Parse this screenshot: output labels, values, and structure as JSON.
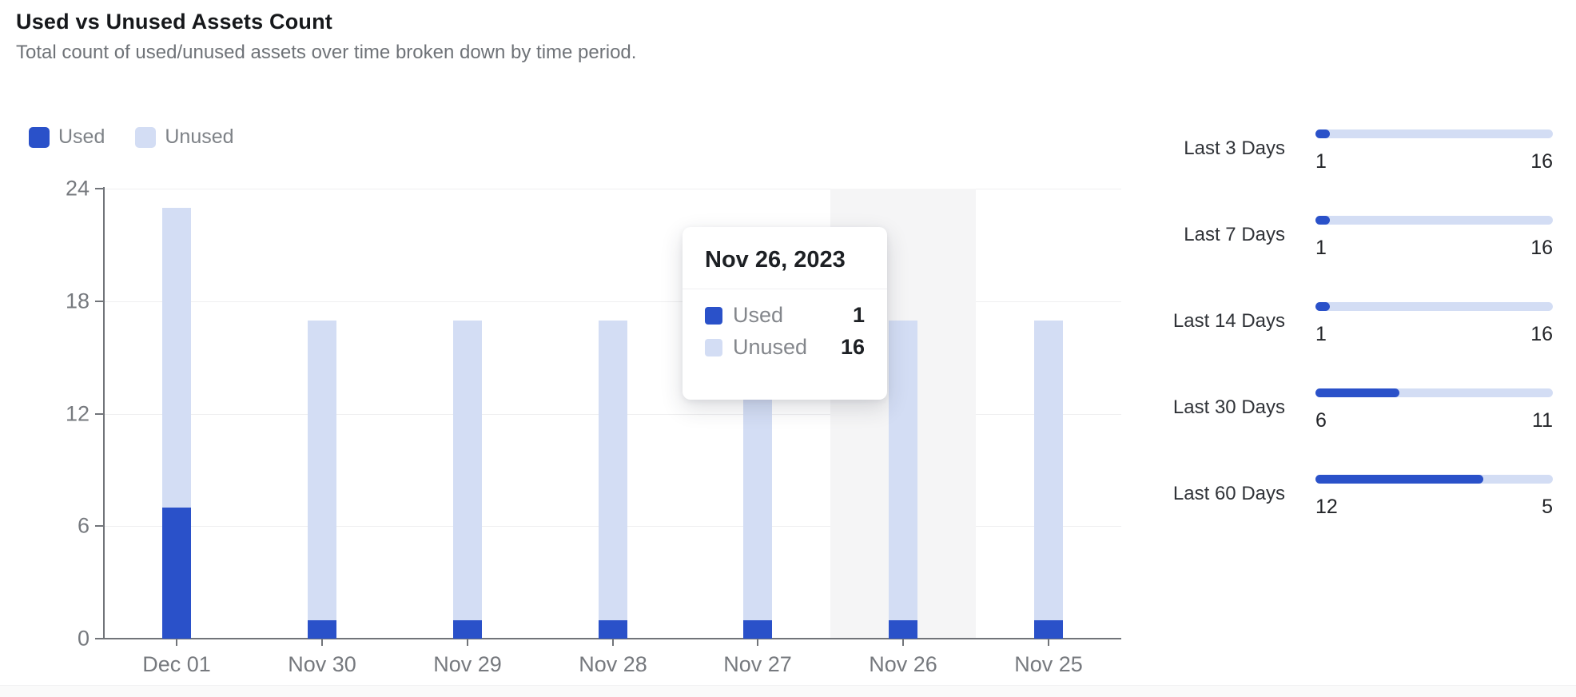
{
  "header": {
    "title": "Used vs Unused Assets Count",
    "subtitle": "Total count of used/unused assets over time broken down by time period."
  },
  "legend": {
    "used_label": "Used",
    "unused_label": "Unused"
  },
  "colors": {
    "used": "#2a51c9",
    "unused": "#d3ddf4",
    "highlight_band": "#f5f5f6"
  },
  "chart_data": {
    "type": "bar",
    "stacked": true,
    "categories": [
      "Dec 01",
      "Nov 30",
      "Nov 29",
      "Nov 28",
      "Nov 27",
      "Nov 26",
      "Nov 25"
    ],
    "series": [
      {
        "name": "Used",
        "values": [
          7,
          1,
          1,
          1,
          1,
          1,
          1
        ]
      },
      {
        "name": "Unused",
        "values": [
          16,
          16,
          16,
          16,
          16,
          16,
          16
        ]
      }
    ],
    "title": "Used vs Unused Assets Count",
    "xlabel": "",
    "ylabel": "",
    "yticks": [
      0,
      6,
      12,
      18,
      24
    ],
    "ylim": [
      0,
      24
    ],
    "grid": true,
    "legend_position": "top-left",
    "highlighted_category": "Nov 26"
  },
  "tooltip": {
    "title": "Nov 26, 2023",
    "rows": [
      {
        "label": "Used",
        "value": "1"
      },
      {
        "label": "Unused",
        "value": "16"
      }
    ]
  },
  "summary_panel": {
    "rows": [
      {
        "label": "Last 3 Days",
        "used": 1,
        "unused": 16
      },
      {
        "label": "Last 7 Days",
        "used": 1,
        "unused": 16
      },
      {
        "label": "Last 14 Days",
        "used": 1,
        "unused": 16
      },
      {
        "label": "Last 30 Days",
        "used": 6,
        "unused": 11
      },
      {
        "label": "Last 60 Days",
        "used": 12,
        "unused": 5
      }
    ]
  }
}
